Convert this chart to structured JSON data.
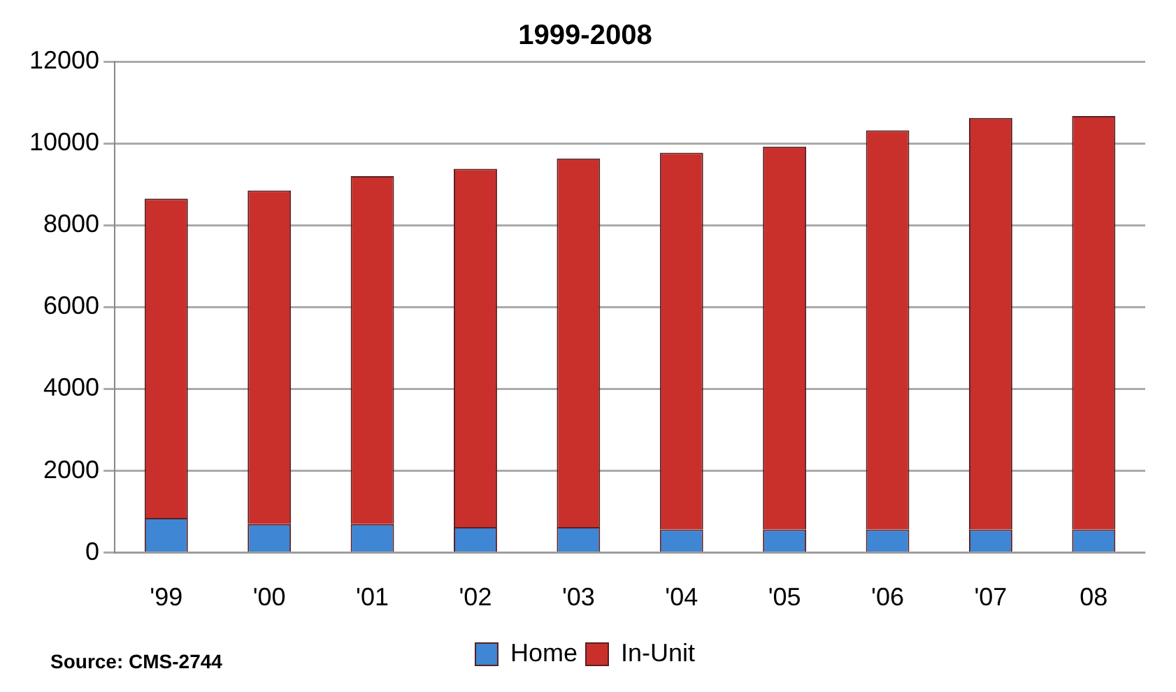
{
  "chart_data": {
    "type": "bar",
    "title": "1999-2008",
    "categories": [
      "'99",
      "'00",
      "'01",
      "'02",
      "'03",
      "'04",
      "'05",
      "'06",
      "'07",
      "08"
    ],
    "stacked": true,
    "series": [
      {
        "name": "Home",
        "color": "#3f86d4",
        "values": [
          850,
          700,
          700,
          630,
          630,
          570,
          570,
          570,
          570,
          570
        ]
      },
      {
        "name": "In-Unit",
        "color": "#c9302c",
        "values": [
          7800,
          8150,
          8500,
          8750,
          9000,
          9200,
          9350,
          9750,
          10050,
          10100
        ]
      }
    ],
    "ylim": [
      0,
      12000
    ],
    "yticks": [
      0,
      2000,
      4000,
      6000,
      8000,
      10000,
      12000
    ],
    "grid": "y",
    "legend": "bottom",
    "annotations": [
      "Source: CMS-2744"
    ]
  }
}
